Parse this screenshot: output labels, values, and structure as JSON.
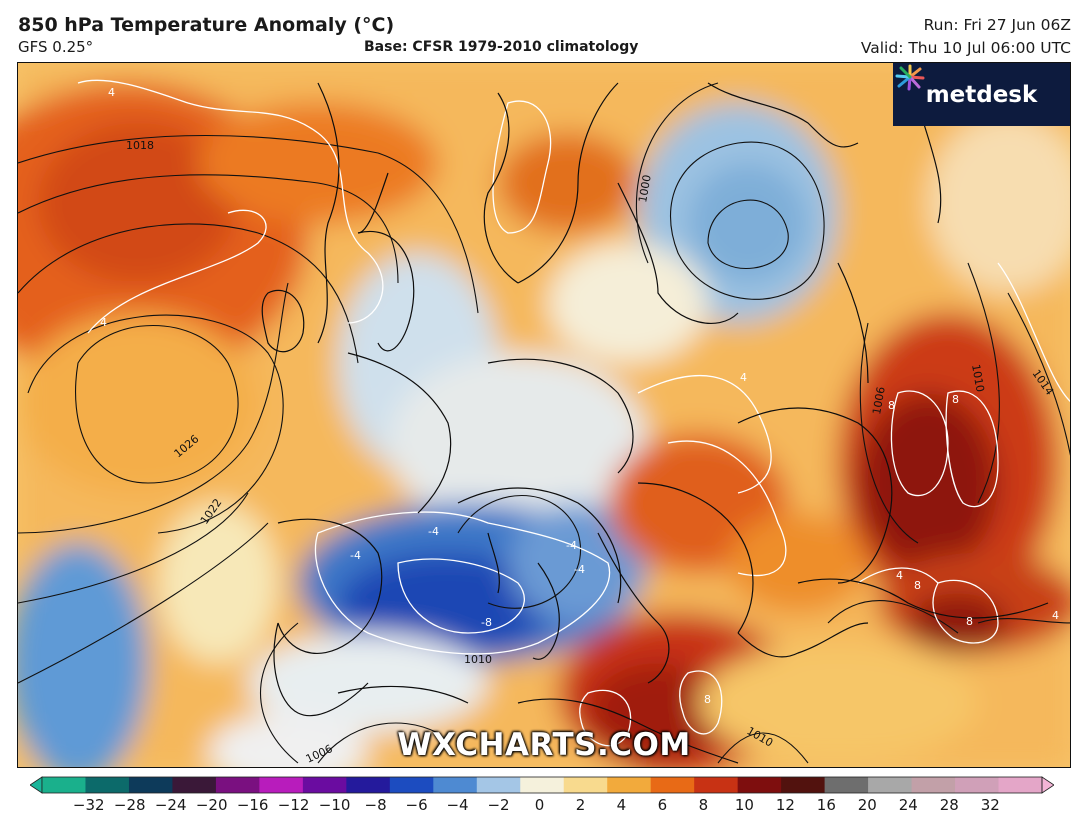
{
  "header": {
    "title": "850 hPa Temperature Anomaly (°C)",
    "subtitle": "GFS 0.25°",
    "base": "Base: CFSR 1979-2010 climatology",
    "run": "Run: Fri 27 Jun 06Z",
    "valid": "Valid: Thu 10 Jul 06:00 UTC"
  },
  "logo": {
    "text": "metdesk",
    "icon": "metdesk-star-icon"
  },
  "watermark": "WXCHARTS.COM",
  "colorbar": {
    "ticks": [
      "−32",
      "−28",
      "−24",
      "−20",
      "−16",
      "−12",
      "−10",
      "−8",
      "−6",
      "−4",
      "−2",
      "0",
      "2",
      "4",
      "6",
      "8",
      "10",
      "12",
      "16",
      "20",
      "24",
      "28",
      "32"
    ],
    "colors": [
      "#1ab08c",
      "#0c6a6a",
      "#0d3a5a",
      "#3a1838",
      "#7a1080",
      "#b81cbc",
      "#6a0ca0",
      "#241a9c",
      "#1c4cc0",
      "#4e8ad2",
      "#a4c6e6",
      "#f5f1dc",
      "#f8da8e",
      "#f2aa3c",
      "#e86a16",
      "#c83214",
      "#7e0e0e",
      "#52120e",
      "#6e6e6e",
      "#a8a8a8",
      "#c2a0a8",
      "#d0a0b8",
      "#e4a6c8"
    ],
    "under_color": "#19b59a",
    "over_color": "#f3b4d6"
  },
  "map": {
    "isobar_labels": [
      "1018",
      "1026",
      "1022",
      "1010",
      "1000",
      "1006",
      "1010",
      "1014",
      "1006",
      "1010"
    ],
    "anomaly_labels": [
      "4",
      "4",
      "-4",
      "-4",
      "-4",
      "-8",
      "-4",
      "4",
      "8",
      "8",
      "8",
      "4",
      "4",
      "8",
      "8"
    ]
  }
}
